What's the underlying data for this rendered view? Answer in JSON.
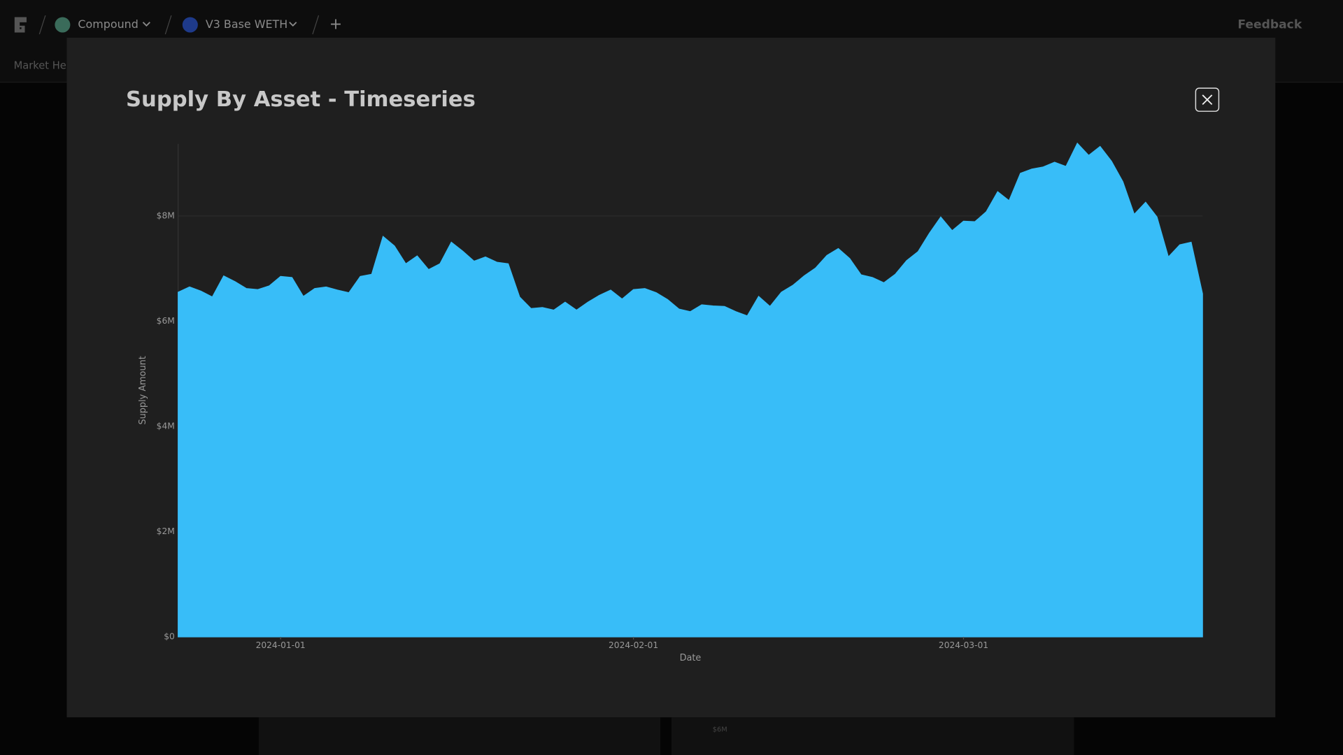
{
  "nav": {
    "project": "Compound",
    "market": "V3 Base WETH",
    "add": "+",
    "feedback": "Feedback",
    "tab": "Market Hea"
  },
  "background_chart_label": "$6M",
  "chart_data": {
    "type": "area",
    "title": "Supply By Asset - Timeseries",
    "x_label": "Date",
    "y_label": "Supply Amount",
    "color": "#38bdf8",
    "grid": true,
    "xlim": [
      "2023-12-23",
      "2024-03-22"
    ],
    "xticks": [
      "2024-01-01",
      "2024-02-01",
      "2024-03-01"
    ],
    "ylim": [
      0,
      9370000
    ],
    "yticks": [
      {
        "value": 0,
        "label": "$0"
      },
      {
        "value": 2000000,
        "label": "$2M"
      },
      {
        "value": 4000000,
        "label": "$4M"
      },
      {
        "value": 6000000,
        "label": "$6M"
      },
      {
        "value": 8000000,
        "label": "$8M"
      }
    ],
    "x": [
      "2023-12-23",
      "2023-12-24",
      "2023-12-25",
      "2023-12-26",
      "2023-12-27",
      "2023-12-28",
      "2023-12-29",
      "2023-12-30",
      "2023-12-31",
      "2024-01-01",
      "2024-01-02",
      "2024-01-03",
      "2024-01-04",
      "2024-01-05",
      "2024-01-06",
      "2024-01-07",
      "2024-01-08",
      "2024-01-09",
      "2024-01-10",
      "2024-01-11",
      "2024-01-12",
      "2024-01-13",
      "2024-01-14",
      "2024-01-15",
      "2024-01-16",
      "2024-01-17",
      "2024-01-18",
      "2024-01-19",
      "2024-01-20",
      "2024-01-21",
      "2024-01-22",
      "2024-01-23",
      "2024-01-24",
      "2024-01-25",
      "2024-01-26",
      "2024-01-27",
      "2024-01-28",
      "2024-01-29",
      "2024-01-30",
      "2024-01-31",
      "2024-02-01",
      "2024-02-02",
      "2024-02-03",
      "2024-02-04",
      "2024-02-05",
      "2024-02-06",
      "2024-02-07",
      "2024-02-08",
      "2024-02-09",
      "2024-02-10",
      "2024-02-11",
      "2024-02-12",
      "2024-02-13",
      "2024-02-14",
      "2024-02-15",
      "2024-02-16",
      "2024-02-17",
      "2024-02-18",
      "2024-02-19",
      "2024-02-20",
      "2024-02-21",
      "2024-02-22",
      "2024-02-23",
      "2024-02-24",
      "2024-02-25",
      "2024-02-26",
      "2024-02-27",
      "2024-02-28",
      "2024-02-29",
      "2024-03-01",
      "2024-03-02",
      "2024-03-03",
      "2024-03-04",
      "2024-03-05",
      "2024-03-06",
      "2024-03-07",
      "2024-03-08",
      "2024-03-09",
      "2024-03-10",
      "2024-03-11",
      "2024-03-12",
      "2024-03-13",
      "2024-03-14",
      "2024-03-15",
      "2024-03-16",
      "2024-03-17",
      "2024-03-18",
      "2024-03-19",
      "2024-03-20",
      "2024-03-21",
      "2024-03-22"
    ],
    "values": [
      6550000,
      6650000,
      6570000,
      6460000,
      6860000,
      6750000,
      6620000,
      6600000,
      6670000,
      6850000,
      6830000,
      6470000,
      6620000,
      6650000,
      6590000,
      6540000,
      6850000,
      6890000,
      7610000,
      7430000,
      7090000,
      7240000,
      6980000,
      7090000,
      7500000,
      7330000,
      7140000,
      7220000,
      7120000,
      7090000,
      6460000,
      6240000,
      6260000,
      6210000,
      6360000,
      6210000,
      6360000,
      6490000,
      6590000,
      6420000,
      6600000,
      6620000,
      6540000,
      6410000,
      6230000,
      6180000,
      6310000,
      6290000,
      6280000,
      6180000,
      6100000,
      6470000,
      6280000,
      6550000,
      6680000,
      6860000,
      7010000,
      7250000,
      7380000,
      7190000,
      6880000,
      6830000,
      6730000,
      6890000,
      7150000,
      7320000,
      7670000,
      7980000,
      7720000,
      7900000,
      7890000,
      8080000,
      8460000,
      8290000,
      8810000,
      8890000,
      8930000,
      9020000,
      8940000,
      9380000,
      9150000,
      9320000,
      9040000,
      8650000,
      8030000,
      8260000,
      7980000,
      7220000,
      7450000,
      7500000,
      6520000
    ]
  }
}
